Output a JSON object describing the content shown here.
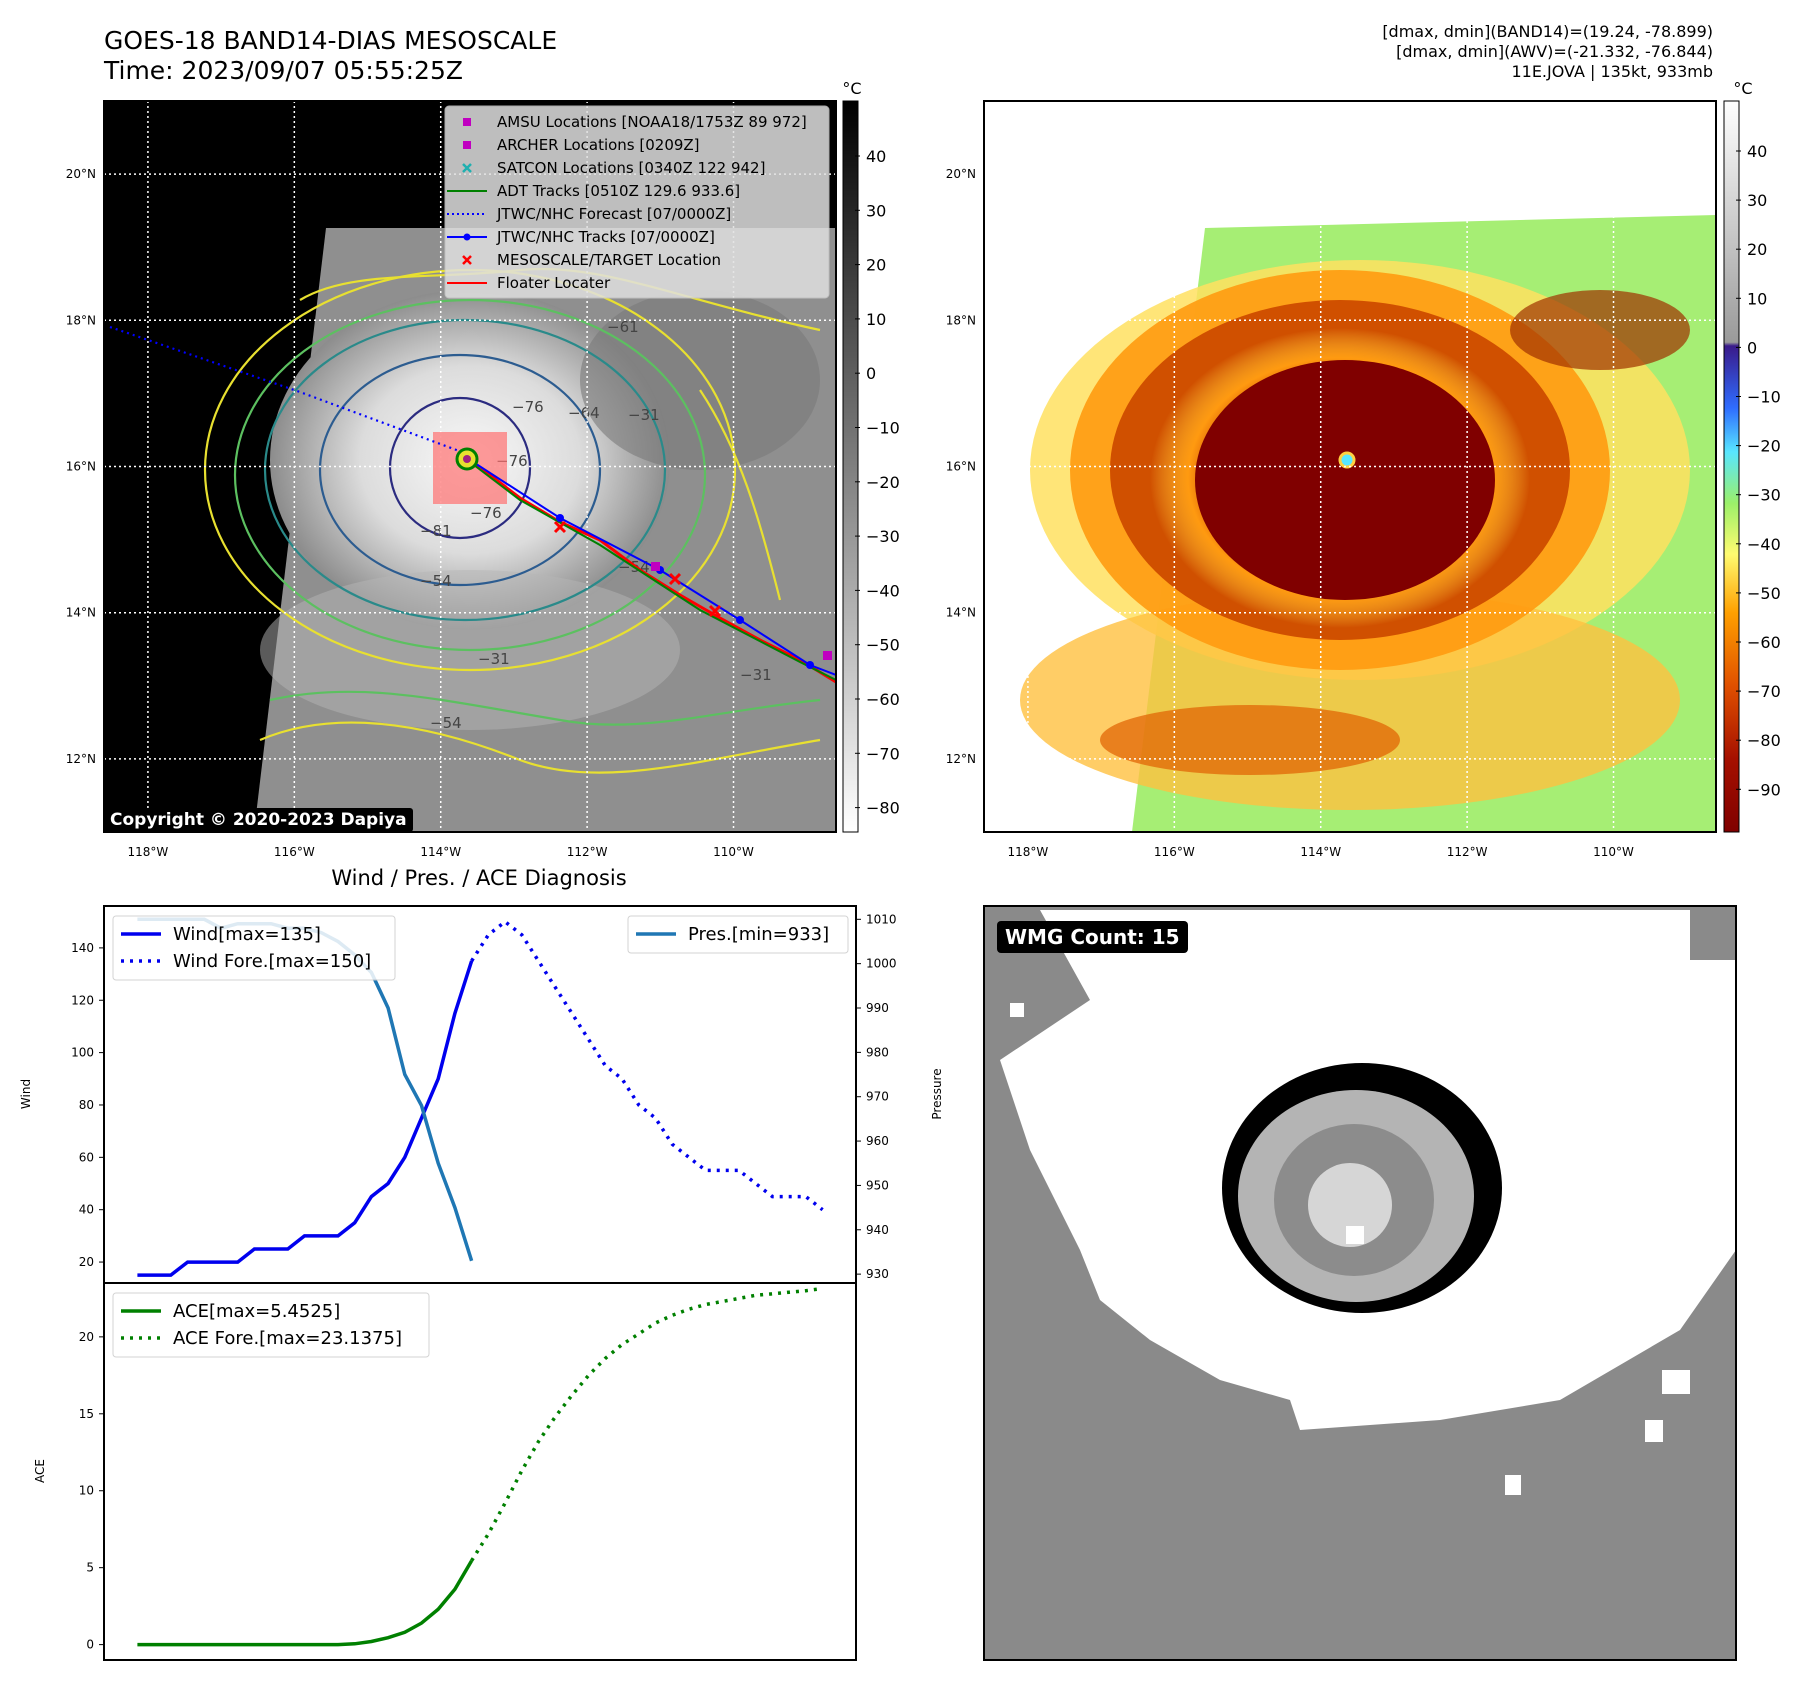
{
  "header": {
    "title_line1": "GOES-18 BAND14-DIAS MESOSCALE",
    "title_line2": "Time: 2023/09/07 05:55:25Z",
    "info_line1": "[dmax, dmin](BAND14)=(19.24, -78.899)",
    "info_line2": "[dmax, dmin](AWV)=(-21.332, -76.844)",
    "info_line3": "11E.JOVA | 135kt, 933mb"
  },
  "map_axes": {
    "lon_ticks": [
      "118°W",
      "116°W",
      "114°W",
      "112°W",
      "110°W"
    ],
    "lat_ticks": [
      "20°N",
      "18°N",
      "16°N",
      "14°N",
      "12°N"
    ],
    "lon_range": [
      -118.6,
      -108.6
    ],
    "lat_range": [
      11.0,
      21.0
    ]
  },
  "panel_ir": {
    "colorbar_unit": "°C",
    "colorbar_ticks": [
      "40",
      "30",
      "20",
      "10",
      "0",
      "−10",
      "−20",
      "−30",
      "−40",
      "−50",
      "−60",
      "−70",
      "−80"
    ],
    "contour_labels": [
      "−76",
      "−64",
      "−76",
      "−81",
      "−76",
      "−61",
      "−31",
      "−31",
      "−31",
      "−54",
      "−54",
      "−54"
    ],
    "copyright": "Copyright © 2020-2023 Dapiya",
    "legend": [
      {
        "label": "AMSU Locations [NOAA18/1753Z 89 972]",
        "marker": "square",
        "color": "#c000c0"
      },
      {
        "label": "ARCHER Locations [0209Z]",
        "marker": "square",
        "color": "#c000c0"
      },
      {
        "label": "SATCON Locations [0340Z 122 942]",
        "marker": "x",
        "color": "#20b0b0"
      },
      {
        "label": "ADT Tracks [0510Z 129.6 933.6]",
        "marker": "line",
        "color": "#008000"
      },
      {
        "label": "JTWC/NHC Forecast [07/0000Z]",
        "marker": "dotted",
        "color": "#0000ff"
      },
      {
        "label": "JTWC/NHC Tracks [07/0000Z]",
        "marker": "line-dot",
        "color": "#0000ff"
      },
      {
        "label": "MESOSCALE/TARGET Location",
        "marker": "x",
        "color": "#ff0000"
      },
      {
        "label": "Floater Locater",
        "marker": "line",
        "color": "#ff0000"
      }
    ]
  },
  "panel_awv": {
    "colorbar_unit": "°C",
    "colorbar_ticks": [
      "40",
      "30",
      "20",
      "10",
      "0",
      "−10",
      "−20",
      "−30",
      "−40",
      "−50",
      "−60",
      "−70",
      "−80",
      "−90"
    ]
  },
  "panel_wmg": {
    "badge": "WMG Count: 15"
  },
  "chart_data": [
    {
      "type": "line",
      "title": "Wind / Pres. / ACE Diagnosis",
      "ylabel": "Wind",
      "y2label": "Pressure",
      "ylim": [
        12,
        156
      ],
      "y2lim": [
        928,
        1013
      ],
      "yticks": [
        "20",
        "40",
        "60",
        "80",
        "100",
        "120",
        "140"
      ],
      "y2ticks": [
        "930",
        "940",
        "950",
        "960",
        "970",
        "980",
        "990",
        "1000",
        "1010"
      ],
      "x": [
        0,
        1,
        2,
        3,
        4,
        5,
        6,
        7,
        8,
        9,
        10,
        11,
        12,
        13,
        14,
        15,
        16,
        17,
        18,
        19,
        20,
        21,
        22,
        23,
        24,
        25,
        26,
        27,
        28,
        29,
        30,
        31,
        32,
        33,
        34,
        35,
        36,
        37,
        38,
        39,
        40,
        41
      ],
      "series": [
        {
          "name": "Wind[max=135]",
          "axis": "left",
          "color": "#0000ee",
          "style": "solid",
          "x": [
            0,
            1,
            2,
            3,
            4,
            5,
            6,
            7,
            8,
            9,
            10,
            11,
            12,
            13,
            14,
            15,
            16,
            17,
            18,
            19,
            20
          ],
          "values": [
            15,
            15,
            15,
            20,
            20,
            20,
            20,
            25,
            25,
            25,
            30,
            30,
            30,
            35,
            45,
            50,
            60,
            75,
            90,
            115,
            135
          ]
        },
        {
          "name": "Wind Fore.[max=150]",
          "axis": "left",
          "color": "#0000ee",
          "style": "dotted",
          "x": [
            20,
            21,
            22,
            23,
            24,
            25,
            26,
            27,
            28,
            29,
            30,
            31,
            32,
            33,
            34,
            35,
            36,
            37,
            38,
            39,
            40,
            41
          ],
          "values": [
            135,
            145,
            150,
            145,
            135,
            125,
            115,
            105,
            95,
            90,
            80,
            75,
            65,
            60,
            55,
            55,
            55,
            50,
            45,
            45,
            45,
            40
          ]
        },
        {
          "name": "Pres.[min=933]",
          "axis": "right",
          "color": "#1f77b4",
          "style": "solid",
          "x": [
            0,
            1,
            2,
            3,
            4,
            5,
            6,
            7,
            8,
            9,
            10,
            11,
            12,
            13,
            14,
            15,
            16,
            17,
            18,
            19,
            20
          ],
          "values": [
            1010,
            1010,
            1010,
            1010,
            1010,
            1008,
            1009,
            1009,
            1009,
            1008,
            1008,
            1007,
            1005,
            1002,
            998,
            990,
            975,
            968,
            955,
            945,
            933
          ]
        }
      ]
    },
    {
      "type": "line",
      "ylabel": "ACE",
      "ylim": [
        -1,
        23.5
      ],
      "yticks": [
        "0",
        "5",
        "10",
        "15",
        "20"
      ],
      "series": [
        {
          "name": "ACE[max=5.4525]",
          "color": "#008000",
          "style": "solid",
          "x": [
            0,
            1,
            2,
            3,
            4,
            5,
            6,
            7,
            8,
            9,
            10,
            11,
            12,
            13,
            14,
            15,
            16,
            17,
            18,
            19,
            20
          ],
          "values": [
            0,
            0,
            0,
            0,
            0,
            0,
            0,
            0,
            0,
            0,
            0,
            0,
            0,
            0.05,
            0.2,
            0.45,
            0.8,
            1.4,
            2.3,
            3.6,
            5.45
          ]
        },
        {
          "name": "ACE Fore.[max=23.1375]",
          "color": "#008000",
          "style": "dotted",
          "x": [
            20,
            21,
            22,
            23,
            24,
            25,
            26,
            27,
            28,
            29,
            30,
            31,
            32,
            33,
            34,
            35,
            36,
            37,
            38,
            39,
            40,
            41
          ],
          "values": [
            5.45,
            7.2,
            9.2,
            11.3,
            13.2,
            14.8,
            16.2,
            17.5,
            18.6,
            19.5,
            20.2,
            20.9,
            21.4,
            21.8,
            22.1,
            22.3,
            22.5,
            22.7,
            22.8,
            22.9,
            23.0,
            23.14
          ]
        }
      ]
    }
  ]
}
